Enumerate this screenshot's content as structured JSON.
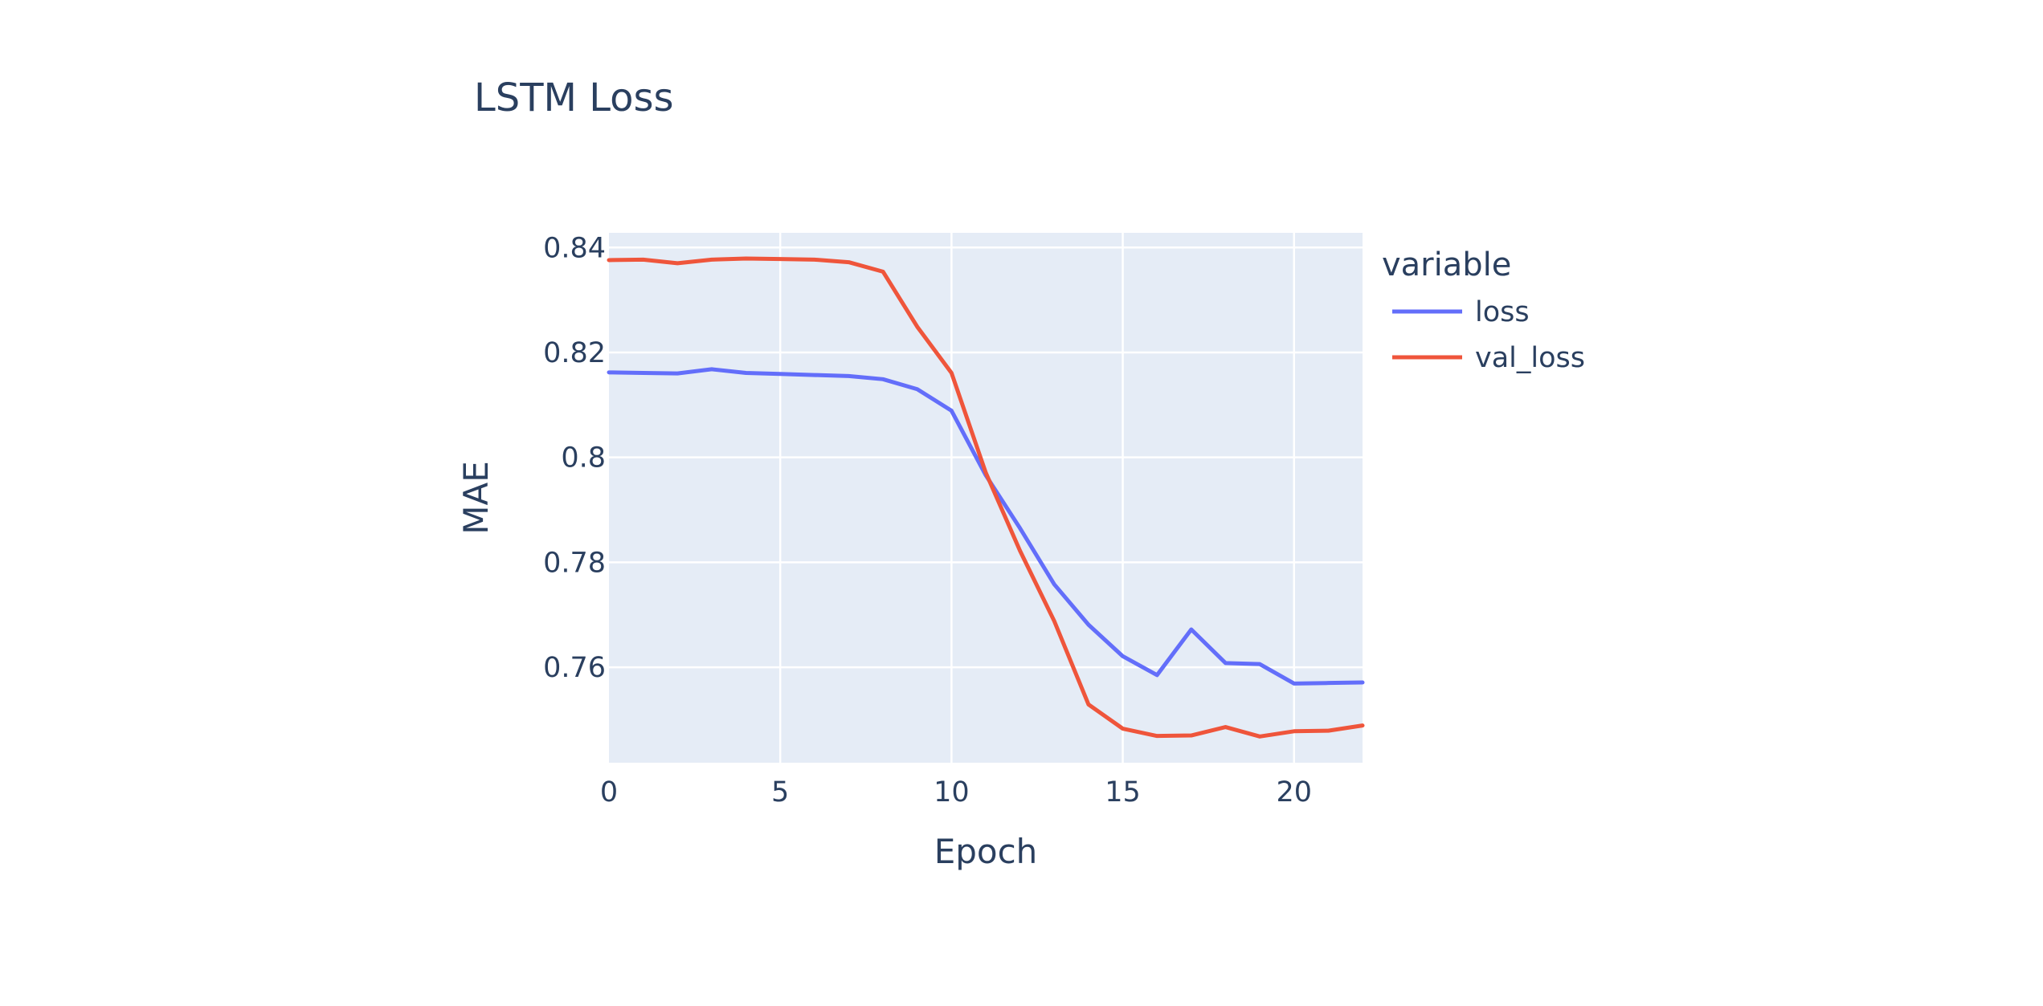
{
  "chart_data": {
    "type": "line",
    "title": "LSTM Loss",
    "xlabel": "Epoch",
    "ylabel": "MAE",
    "xlim": [
      0,
      22
    ],
    "ylim": [
      0.7418,
      0.8428
    ],
    "x_ticks": [
      0,
      5,
      10,
      15,
      20
    ],
    "y_ticks": [
      0.76,
      0.78,
      0.8,
      0.82,
      0.84
    ],
    "y_tick_labels": [
      "0.76",
      "0.78",
      "0.8",
      "0.82",
      "0.84"
    ],
    "grid": true,
    "plot_background": "#e5ecf6",
    "legend": {
      "title": "variable",
      "placement": "right"
    },
    "x": [
      0,
      1,
      2,
      3,
      4,
      5,
      6,
      7,
      8,
      9,
      10,
      11,
      12,
      13,
      14,
      15,
      16,
      17,
      18,
      19,
      20,
      21,
      22
    ],
    "series": [
      {
        "name": "loss",
        "color": "#636efa",
        "values": [
          0.8162,
          0.8161,
          0.816,
          0.8168,
          0.8161,
          0.8159,
          0.8157,
          0.8155,
          0.8149,
          0.813,
          0.8089,
          0.7966,
          0.7865,
          0.7758,
          0.7681,
          0.7621,
          0.7585,
          0.7672,
          0.7608,
          0.7606,
          0.7569,
          0.757,
          0.7571
        ]
      },
      {
        "name": "val_loss",
        "color": "#ef553b",
        "values": [
          0.8376,
          0.8377,
          0.837,
          0.8377,
          0.8379,
          0.8378,
          0.8377,
          0.8372,
          0.8354,
          0.8249,
          0.8161,
          0.7971,
          0.7822,
          0.7688,
          0.7529,
          0.7483,
          0.7469,
          0.747,
          0.7486,
          0.7468,
          0.7478,
          0.7479,
          0.7489
        ]
      }
    ]
  }
}
